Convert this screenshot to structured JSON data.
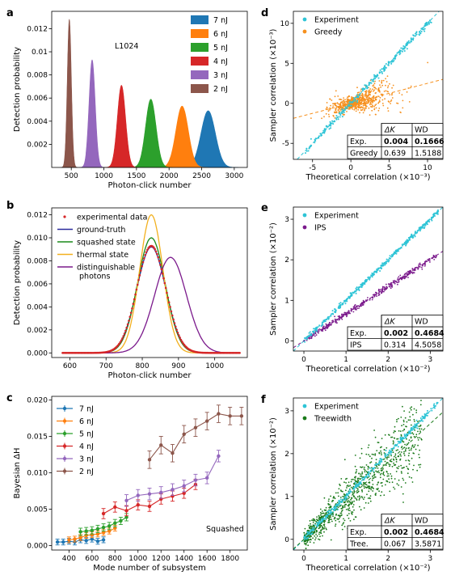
{
  "chart_data": [
    {
      "panel": "a",
      "type": "area",
      "annotation": "L1024",
      "xlabel": "Photon-click number",
      "ylabel": "Detection probability",
      "xlim": [
        200,
        3200
      ],
      "ylim": [
        0,
        0.0135
      ],
      "xticks": [
        500,
        1000,
        1500,
        2000,
        2500,
        3000
      ],
      "yticks": [
        0.002,
        0.004,
        0.006,
        0.008,
        0.01,
        0.012
      ],
      "ytick_labels": [
        "0.002",
        "0.004",
        "0.006",
        "0.008",
        "0.01",
        "0.012"
      ],
      "legend_position": "top-right",
      "series": [
        {
          "name": "7 nJ",
          "color": "#1f77b4",
          "mean": 2600,
          "peak": 0.0049
        },
        {
          "name": "6 nJ",
          "color": "#ff7f0e",
          "mean": 2200,
          "peak": 0.0053
        },
        {
          "name": "5 nJ",
          "color": "#2ca02c",
          "mean": 1720,
          "peak": 0.0059
        },
        {
          "name": "4 nJ",
          "color": "#d62728",
          "mean": 1270,
          "peak": 0.0071
        },
        {
          "name": "3 nJ",
          "color": "#9467bd",
          "mean": 820,
          "peak": 0.0093
        },
        {
          "name": "2 nJ",
          "color": "#8c564b",
          "mean": 470,
          "peak": 0.0128
        }
      ]
    },
    {
      "panel": "b",
      "type": "line",
      "xlabel": "Photon-click number",
      "ylabel": "Detection probability",
      "xlim": [
        550,
        1090
      ],
      "ylim": [
        -0.0004,
        0.0126
      ],
      "xticks": [
        600,
        700,
        800,
        900,
        1000
      ],
      "yticks": [
        0.0,
        0.002,
        0.004,
        0.006,
        0.008,
        0.01,
        0.012
      ],
      "ytick_labels": [
        "0.000",
        "0.002",
        "0.004",
        "0.006",
        "0.008",
        "0.010",
        "0.012"
      ],
      "legend_position": "top-left",
      "series": [
        {
          "name": "experimental data",
          "color": "#d62728",
          "kind": "points",
          "mean": 825,
          "peak": 0.0093
        },
        {
          "name": "ground-truth",
          "color": "#2a2a9c",
          "kind": "line",
          "mean": 825,
          "peak": 0.0092
        },
        {
          "name": "squashed state",
          "color": "#1a8a1a",
          "kind": "line",
          "mean": 825,
          "peak": 0.01
        },
        {
          "name": "thermal state",
          "color": "#f2b01e",
          "kind": "line",
          "mean": 825,
          "peak": 0.012
        },
        {
          "name": "distinguishable\n photons",
          "color": "#7b1a8c",
          "kind": "line",
          "mean": 878,
          "peak": 0.0083
        }
      ]
    },
    {
      "panel": "c",
      "type": "line",
      "annotation": "Squashed",
      "xlabel": "Mode number of subsystem",
      "ylabel": "Bayesian ΔH",
      "xlim": [
        250,
        1950
      ],
      "ylim": [
        -0.0006,
        0.0205
      ],
      "xticks": [
        400,
        600,
        800,
        1000,
        1200,
        1400,
        1600,
        1800
      ],
      "yticks": [
        0.0,
        0.005,
        0.01,
        0.015,
        0.02
      ],
      "ytick_labels": [
        "0.000",
        "0.005",
        "0.010",
        "0.015",
        "0.020"
      ],
      "legend_position": "top-left",
      "series": [
        {
          "name": "7 nJ",
          "color": "#1f77b4",
          "x": [
            300,
            350,
            400,
            450,
            500,
            550,
            600,
            650,
            700
          ],
          "y": [
            0.0005,
            0.0005,
            0.0006,
            0.0005,
            0.0008,
            0.0007,
            0.0009,
            0.0006,
            0.0008
          ],
          "err": 0.0004
        },
        {
          "name": "6 nJ",
          "color": "#ff7f0e",
          "x": [
            400,
            450,
            500,
            550,
            600,
            650,
            700,
            750,
            800
          ],
          "y": [
            0.0008,
            0.0009,
            0.0011,
            0.0014,
            0.0015,
            0.0016,
            0.0018,
            0.002,
            0.0024
          ],
          "err": 0.0004
        },
        {
          "name": "5 nJ",
          "color": "#2ca02c",
          "x": [
            500,
            550,
            600,
            650,
            700,
            750,
            800,
            850,
            900
          ],
          "y": [
            0.0019,
            0.002,
            0.0021,
            0.0023,
            0.0025,
            0.0027,
            0.0031,
            0.0034,
            0.0039
          ],
          "err": 0.0005
        },
        {
          "name": "4 nJ",
          "color": "#d62728",
          "x": [
            700,
            800,
            900,
            1000,
            1100,
            1200,
            1300,
            1400,
            1500
          ],
          "y": [
            0.0044,
            0.0053,
            0.0048,
            0.0056,
            0.0054,
            0.0064,
            0.0068,
            0.0072,
            0.0084
          ],
          "err": 0.0007
        },
        {
          "name": "3 nJ",
          "color": "#9467bd",
          "x": [
            900,
            1000,
            1100,
            1200,
            1300,
            1400,
            1500,
            1600,
            1700
          ],
          "y": [
            0.0062,
            0.0069,
            0.0071,
            0.0073,
            0.0077,
            0.0082,
            0.009,
            0.0093,
            0.0123
          ],
          "err": 0.0008
        },
        {
          "name": "2 nJ",
          "color": "#8c564b",
          "x": [
            1100,
            1200,
            1300,
            1400,
            1500,
            1600,
            1700,
            1800,
            1900
          ],
          "y": [
            0.0118,
            0.0138,
            0.0127,
            0.0153,
            0.0162,
            0.0171,
            0.0181,
            0.0178,
            0.0178
          ],
          "err": 0.0012
        }
      ]
    },
    {
      "panel": "d",
      "type": "scatter",
      "xlabel": "Theoretical correlation (×10⁻³)",
      "ylabel": "Sampler correlation (×10⁻³)",
      "xlim": [
        -7.5,
        12
      ],
      "ylim": [
        -7,
        11.5
      ],
      "xticks": [
        -5,
        0,
        5,
        10
      ],
      "yticks": [
        -5,
        0,
        5,
        10
      ],
      "legend_position": "top-left",
      "series": [
        {
          "name": "Experiment",
          "color": "#2ec4d6",
          "fit_slope": 1.0
        },
        {
          "name": "Greedy",
          "color": "#f6901e",
          "fit_slope": 0.25
        }
      ],
      "table": {
        "headers": [
          "",
          "ΔK",
          "WD"
        ],
        "rows": [
          {
            "label": "Exp.",
            "dk": "0.004",
            "wd": "0.1666",
            "color": "#2ec4d6"
          },
          {
            "label": "Greedy",
            "dk": "0.639",
            "wd": "1.5188",
            "color": "#f6901e"
          }
        ]
      }
    },
    {
      "panel": "e",
      "type": "scatter",
      "xlabel": "Theoretical correlation (×10⁻²)",
      "ylabel": "Sampler correlation (×10⁻²)",
      "xlim": [
        -0.25,
        3.3
      ],
      "ylim": [
        -0.25,
        3.3
      ],
      "xticks": [
        0,
        1,
        2,
        3
      ],
      "yticks": [
        0,
        1,
        2,
        3
      ],
      "legend_position": "top-left",
      "series": [
        {
          "name": "Experiment",
          "color": "#2ec4d6",
          "fit_slope": 1.0
        },
        {
          "name": "IPS",
          "color": "#7b1a8c",
          "fit_slope": 0.67
        }
      ],
      "table": {
        "headers": [
          "",
          "ΔK",
          "WD"
        ],
        "rows": [
          {
            "label": "Exp.",
            "dk": "0.002",
            "wd": "0.4684",
            "color": "#2ec4d6"
          },
          {
            "label": "IPS",
            "dk": "0.314",
            "wd": "4.5058",
            "color": "#7b1a8c"
          }
        ]
      }
    },
    {
      "panel": "f",
      "type": "scatter",
      "xlabel": "Theoretical correlation (×10⁻²)",
      "ylabel": "Sampler correlation (×10⁻²)",
      "xlim": [
        -0.25,
        3.3
      ],
      "ylim": [
        -0.25,
        3.3
      ],
      "xticks": [
        0,
        1,
        2,
        3
      ],
      "yticks": [
        0,
        1,
        2,
        3
      ],
      "legend_position": "top-left",
      "series": [
        {
          "name": "Experiment",
          "color": "#2ec4d6",
          "fit_slope": 1.0
        },
        {
          "name": "Treewidth",
          "color": "#1a7a1a",
          "fit_slope": 0.9
        }
      ],
      "table": {
        "headers": [
          "",
          "ΔK",
          "WD"
        ],
        "rows": [
          {
            "label": "Exp.",
            "dk": "0.002",
            "wd": "0.4684",
            "color": "#2ec4d6"
          },
          {
            "label": "Tree.",
            "dk": "0.067",
            "wd": "3.5871",
            "color": "#1a7a1a"
          }
        ]
      }
    }
  ]
}
